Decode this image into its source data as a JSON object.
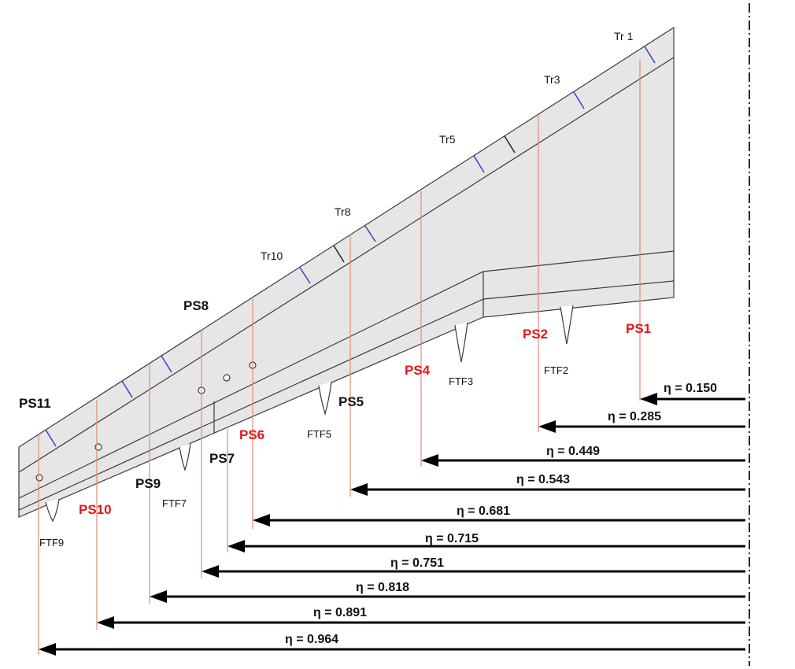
{
  "colors": {
    "wing_fill": "#e6e6e6",
    "outline": "#3a3a3a",
    "station_line": "#e48a78",
    "marker_blue": "#3a3ad0",
    "marker_black": "#222222",
    "label_red": "#e01818",
    "label_black": "#111111",
    "arrow": "#000000"
  },
  "trailing_markers": [
    {
      "label": "Tr 1"
    },
    {
      "label": "Tr3"
    },
    {
      "label": "Tr5"
    },
    {
      "label": "Tr8"
    },
    {
      "label": "Tr10"
    }
  ],
  "flap_fairings": [
    {
      "label": "FTF2"
    },
    {
      "label": "FTF3"
    },
    {
      "label": "FTF5"
    },
    {
      "label": "FTF7"
    },
    {
      "label": "FTF9"
    }
  ],
  "stations": [
    {
      "label": "PS1",
      "eta": "η = 0.150",
      "highlight": true
    },
    {
      "label": "PS2",
      "eta": "η = 0.285",
      "highlight": true
    },
    {
      "label": "PS4",
      "eta": "η = 0.449",
      "highlight": true
    },
    {
      "label": "PS5",
      "eta": "η = 0.543",
      "highlight": false
    },
    {
      "label": "PS6",
      "eta": "η = 0.681",
      "highlight": true
    },
    {
      "label": "PS7",
      "eta": "η = 0.715",
      "highlight": false
    },
    {
      "label": "PS8",
      "eta": "η = 0.751",
      "highlight": false
    },
    {
      "label": "PS9",
      "eta": "η = 0.818",
      "highlight": false
    },
    {
      "label": "PS10",
      "eta": "η = 0.891",
      "highlight": true
    },
    {
      "label": "PS11",
      "eta": "η = 0.964",
      "highlight": false
    }
  ]
}
